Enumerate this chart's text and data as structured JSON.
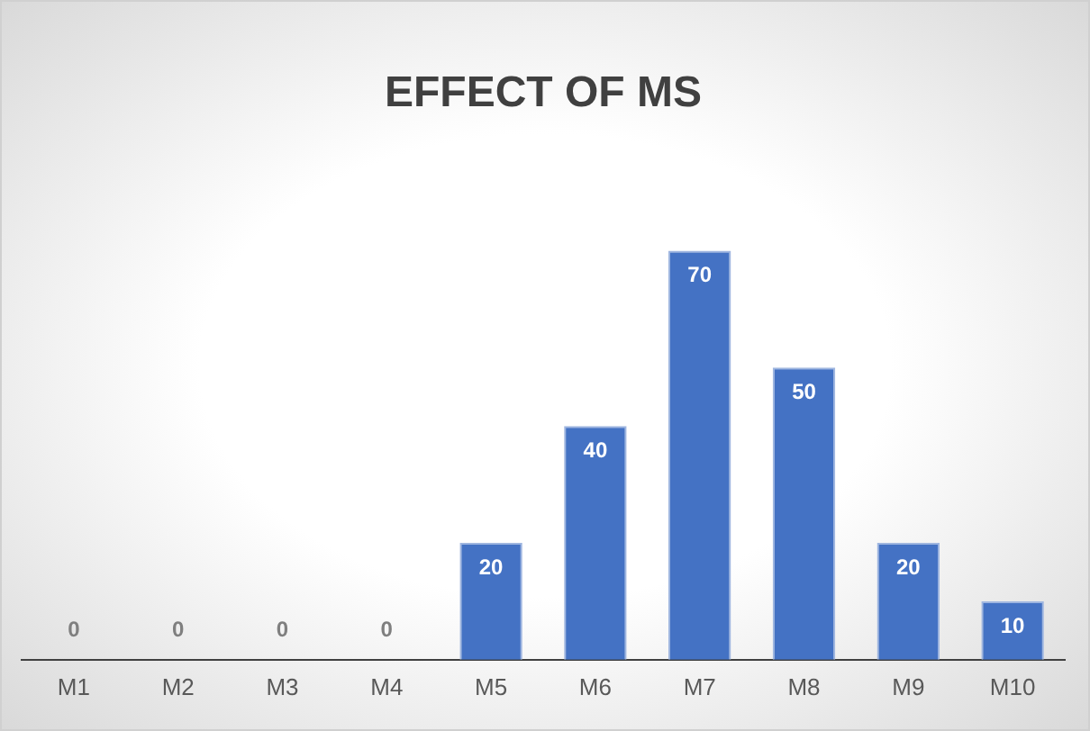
{
  "chart_data": {
    "type": "bar",
    "title": "EFFECT OF MS",
    "categories": [
      "M1",
      "M2",
      "M3",
      "M4",
      "M5",
      "M6",
      "M7",
      "M8",
      "M9",
      "M10"
    ],
    "values": [
      0,
      0,
      0,
      0,
      20,
      40,
      70,
      50,
      20,
      10
    ],
    "color": "#4472c4",
    "data_labels": true,
    "grid": false,
    "legend": false,
    "tick_labels": "x"
  }
}
